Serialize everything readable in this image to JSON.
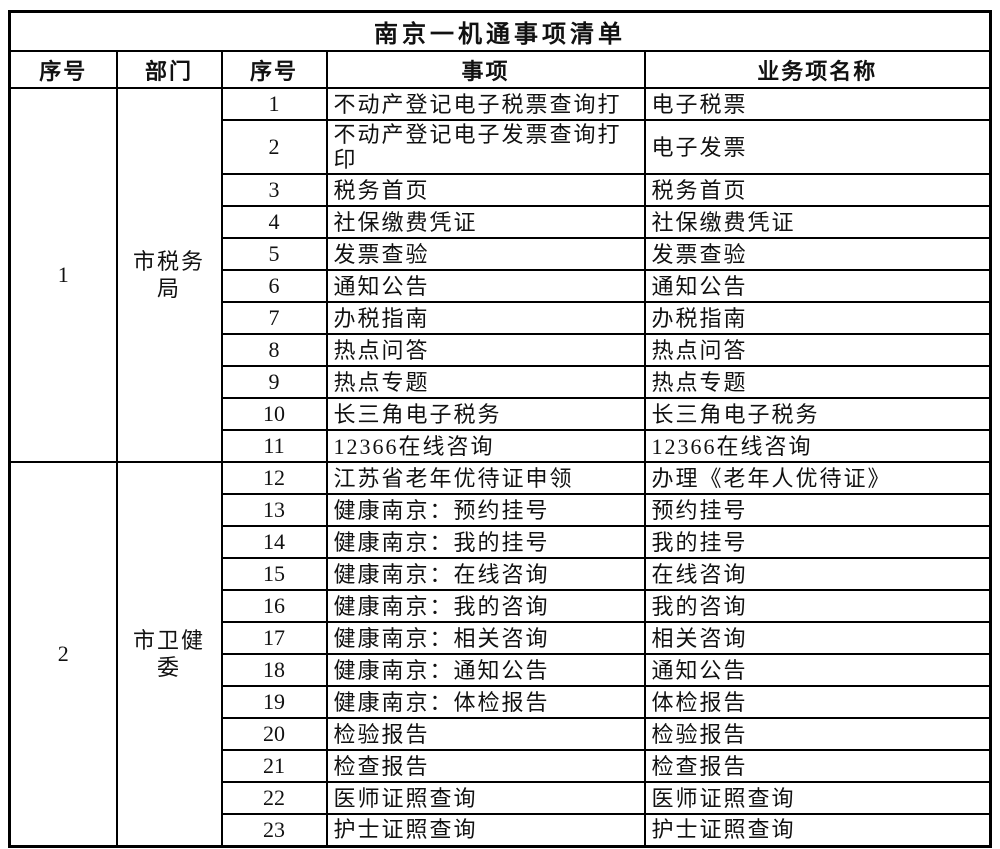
{
  "title": "南京一机通事项清单",
  "columns": {
    "group_no": "序号",
    "department": "部门",
    "item_no": "序号",
    "matter": "事项",
    "business": "业务项名称"
  },
  "groups": [
    {
      "no": "1",
      "department": "市税务局",
      "items": [
        {
          "no": "1",
          "matter": "不动产登记电子税票查询打",
          "business": "电子税票"
        },
        {
          "no": "2",
          "matter": "不动产登记电子发票查询打印",
          "business": "电子发票"
        },
        {
          "no": "3",
          "matter": "税务首页",
          "business": "税务首页"
        },
        {
          "no": "4",
          "matter": "社保缴费凭证",
          "business": "社保缴费凭证"
        },
        {
          "no": "5",
          "matter": "发票查验",
          "business": "发票查验"
        },
        {
          "no": "6",
          "matter": "通知公告",
          "business": "通知公告"
        },
        {
          "no": "7",
          "matter": "办税指南",
          "business": "办税指南"
        },
        {
          "no": "8",
          "matter": "热点问答",
          "business": "热点问答"
        },
        {
          "no": "9",
          "matter": "热点专题",
          "business": "热点专题"
        },
        {
          "no": "10",
          "matter": "长三角电子税务",
          "business": "长三角电子税务"
        },
        {
          "no": "11",
          "matter": "12366在线咨询",
          "business": "12366在线咨询"
        }
      ]
    },
    {
      "no": "2",
      "department": "市卫健委",
      "items": [
        {
          "no": "12",
          "matter": "江苏省老年优待证申领",
          "business": "办理《老年人优待证》"
        },
        {
          "no": "13",
          "matter": "健康南京：预约挂号",
          "business": "预约挂号"
        },
        {
          "no": "14",
          "matter": "健康南京：我的挂号",
          "business": "我的挂号"
        },
        {
          "no": "15",
          "matter": "健康南京：在线咨询",
          "business": "在线咨询"
        },
        {
          "no": "16",
          "matter": "健康南京：我的咨询",
          "business": "我的咨询"
        },
        {
          "no": "17",
          "matter": "健康南京：相关咨询",
          "business": "相关咨询"
        },
        {
          "no": "18",
          "matter": "健康南京：通知公告",
          "business": "通知公告"
        },
        {
          "no": "19",
          "matter": "健康南京：体检报告",
          "business": "体检报告"
        },
        {
          "no": "20",
          "matter": "检验报告",
          "business": "检验报告"
        },
        {
          "no": "21",
          "matter": "检查报告",
          "business": "检查报告"
        },
        {
          "no": "22",
          "matter": "医师证照查询",
          "business": "医师证照查询"
        },
        {
          "no": "23",
          "matter": "护士证照查询",
          "business": "护士证照查询"
        }
      ]
    }
  ],
  "colors": {
    "border": "#000000",
    "text": "#111111",
    "background": "#ffffff"
  }
}
